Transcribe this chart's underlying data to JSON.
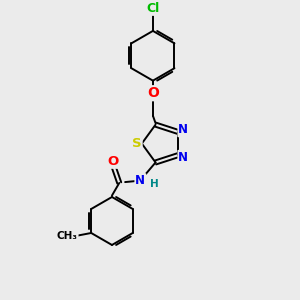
{
  "bg_color": "#ebebeb",
  "bond_color": "#000000",
  "atom_colors": {
    "Cl": "#00bb00",
    "O": "#ff0000",
    "N": "#0000ee",
    "S": "#cccc00",
    "C": "#000000",
    "H": "#008888"
  },
  "line_width": 1.4,
  "font_size": 8.5
}
